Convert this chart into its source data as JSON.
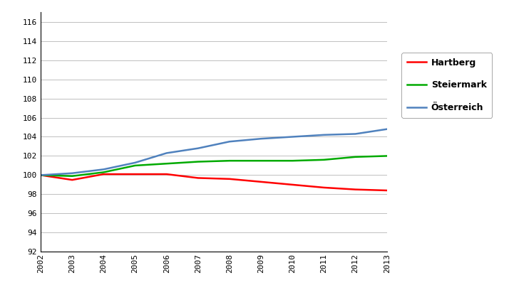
{
  "years": [
    2002,
    2003,
    2004,
    2005,
    2006,
    2007,
    2008,
    2009,
    2010,
    2011,
    2012,
    2013
  ],
  "hartberg": [
    100.0,
    99.5,
    100.1,
    100.1,
    100.1,
    99.7,
    99.6,
    99.3,
    99.0,
    98.7,
    98.5,
    98.4
  ],
  "steiermark": [
    100.0,
    99.9,
    100.3,
    101.0,
    101.2,
    101.4,
    101.5,
    101.5,
    101.5,
    101.6,
    101.9,
    102.0
  ],
  "oesterreich": [
    100.0,
    100.2,
    100.6,
    101.3,
    102.3,
    102.8,
    103.5,
    103.8,
    104.0,
    104.2,
    104.3,
    104.8
  ],
  "colors": {
    "hartberg": "#ff0000",
    "steiermark": "#00aa00",
    "oesterreich": "#4f81bd"
  },
  "legend_labels": [
    "Hartberg",
    "Steiermark",
    "Österreich"
  ],
  "ylim": [
    92,
    117
  ],
  "yticks": [
    92,
    94,
    96,
    98,
    100,
    102,
    104,
    106,
    108,
    110,
    112,
    114,
    116
  ],
  "linewidth": 1.8,
  "background_color": "#ffffff",
  "plot_bg_color": "#ffffff",
  "grid_color": "#c0c0c0",
  "font_size_ticks": 8,
  "font_size_legend": 9
}
